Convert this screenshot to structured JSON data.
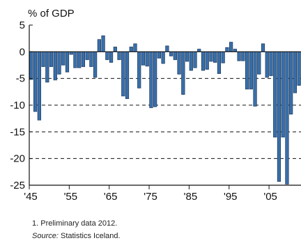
{
  "chart_data": {
    "type": "bar",
    "ylabel": "% of GDP",
    "ylim": [
      -25,
      5
    ],
    "yticks": [
      5,
      0,
      -5,
      -10,
      -15,
      -20,
      -25
    ],
    "x_tick_labels": [
      "'45",
      "'55",
      "'65",
      "'75",
      "'85",
      "'95",
      "'05"
    ],
    "x_tick_years": [
      1945,
      1955,
      1965,
      1975,
      1985,
      1995,
      2005
    ],
    "grid": "dashed horizontal lines at -5, -10, -15, -20",
    "bar_color": "#3a6fa8",
    "bar_edge_color": "#0f2a52",
    "x": [
      1945,
      1946,
      1947,
      1948,
      1949,
      1950,
      1951,
      1952,
      1953,
      1954,
      1955,
      1956,
      1957,
      1958,
      1959,
      1960,
      1961,
      1962,
      1963,
      1964,
      1965,
      1966,
      1967,
      1968,
      1969,
      1970,
      1971,
      1972,
      1973,
      1974,
      1975,
      1976,
      1977,
      1978,
      1979,
      1980,
      1981,
      1982,
      1983,
      1984,
      1985,
      1986,
      1987,
      1988,
      1989,
      1990,
      1991,
      1992,
      1993,
      1994,
      1995,
      1996,
      1997,
      1998,
      1999,
      2000,
      2001,
      2002,
      2003,
      2004,
      2005,
      2006,
      2007,
      2008,
      2009,
      2010,
      2011,
      2012
    ],
    "values": [
      -5.2,
      -11.2,
      -12.8,
      -2.8,
      -5.7,
      -2.8,
      -5.3,
      -4.2,
      -2.5,
      -3.8,
      -0.5,
      -3.0,
      -3.0,
      -2.8,
      -1.5,
      -2.8,
      -4.8,
      2.3,
      3.0,
      -1.5,
      -2.0,
      0.9,
      -1.5,
      -8.3,
      -8.8,
      0.9,
      1.5,
      -6.8,
      -2.5,
      -2.7,
      -10.5,
      -10.3,
      -1.2,
      -2.2,
      1.1,
      -0.8,
      -1.5,
      -4.2,
      -8.0,
      -1.8,
      -3.5,
      -3.0,
      0.5,
      -3.5,
      -3.3,
      -1.8,
      -2.0,
      -4.1,
      -2.1,
      0.8,
      1.8,
      0.5,
      -1.7,
      -1.7,
      -7.0,
      -7.0,
      -10.2,
      -4.2,
      1.5,
      -4.8,
      -4.5,
      -16.0,
      -24.3,
      -16.0,
      -24.8,
      -11.7,
      -7.7,
      -6.3
    ]
  },
  "notes": {
    "footnote": "1. Preliminary data 2012.",
    "source_label": "Source:",
    "source_text": " Statistics Iceland."
  }
}
